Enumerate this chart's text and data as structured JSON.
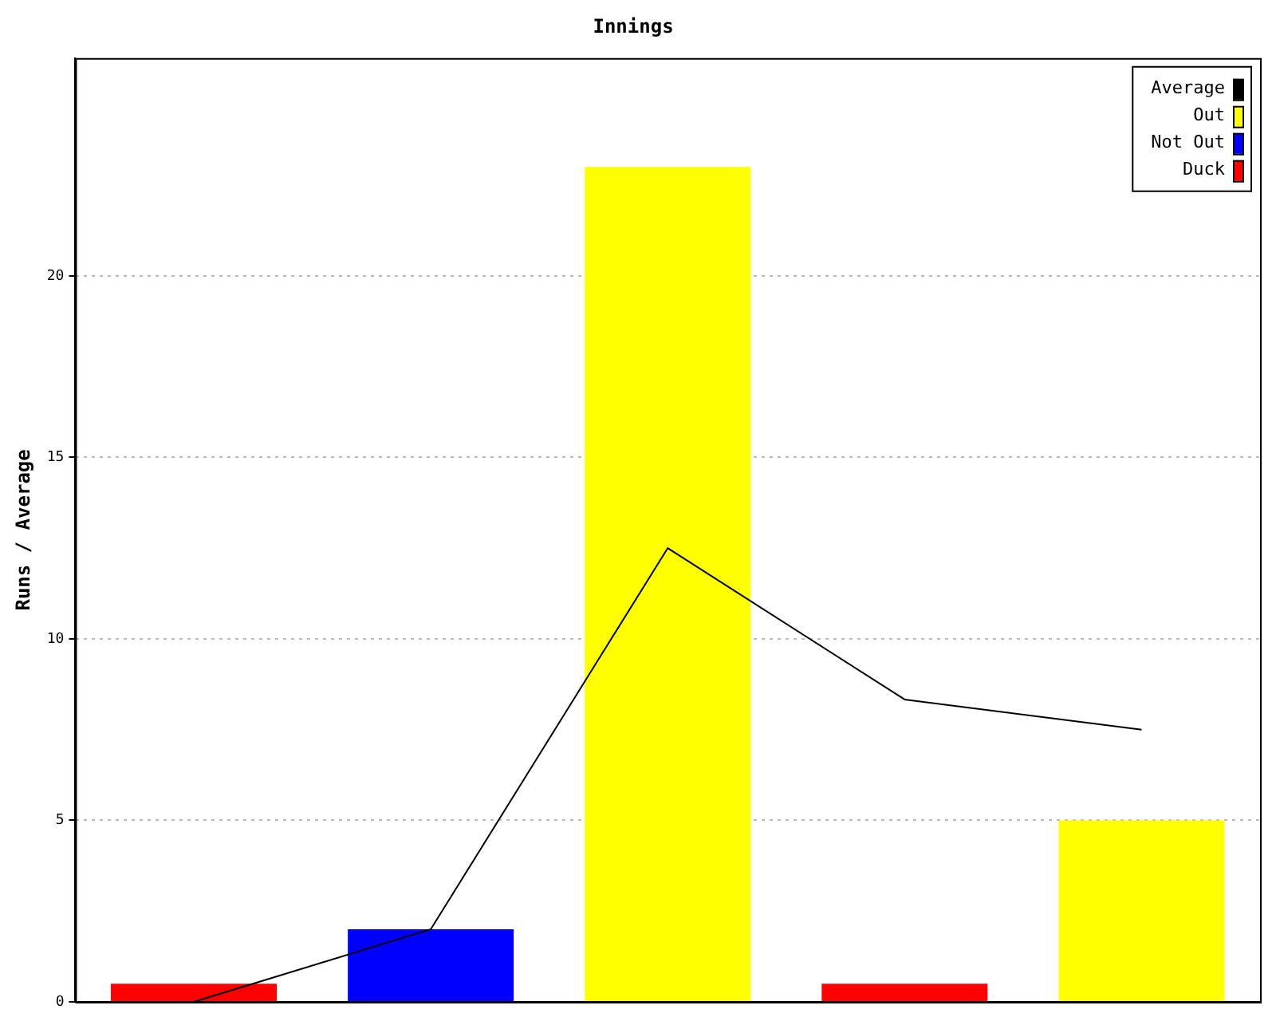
{
  "chart_data": {
    "type": "bar",
    "title": "Innings",
    "ylabel": "Runs / Average",
    "categories": [
      null,
      null,
      null,
      null,
      null
    ],
    "series": [
      {
        "name": "Average",
        "type": "line",
        "color": "#000000",
        "values": [
          0,
          2,
          12.5,
          8.33,
          7.5
        ]
      },
      {
        "name": "Out",
        "color": "#ffff00",
        "values": [
          null,
          null,
          23,
          null,
          5
        ]
      },
      {
        "name": "Not Out",
        "color": "#0000ff",
        "values": [
          null,
          2,
          null,
          null,
          null
        ]
      },
      {
        "name": "Duck",
        "color": "#ff0000",
        "values": [
          0.5,
          null,
          null,
          0.5,
          null
        ]
      }
    ],
    "ylim": [
      0,
      26
    ],
    "yticks": [
      0,
      5,
      10,
      15,
      20
    ],
    "grid": "y",
    "legend": "top right",
    "tick_labels": "y",
    "marker": "none"
  }
}
